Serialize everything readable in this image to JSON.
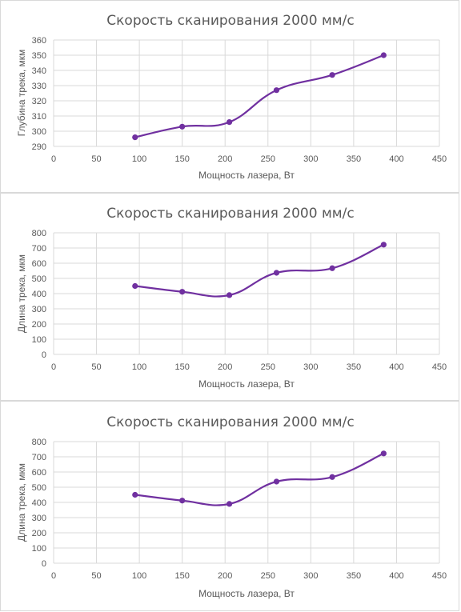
{
  "chart_data": [
    {
      "type": "line",
      "title": "Скорость  сканирования 2000 мм/с",
      "xlabel": "Мощность лазера, Вт",
      "ylabel": "Глубина трека, мкм",
      "xlim": [
        0,
        450
      ],
      "ylim": [
        290,
        360
      ],
      "xticks": [
        "0",
        "50",
        "100",
        "150",
        "200",
        "250",
        "300",
        "350",
        "400",
        "450"
      ],
      "yticks": [
        "290",
        "300",
        "310",
        "320",
        "330",
        "340",
        "350",
        "360"
      ],
      "grid": true,
      "smooth": true,
      "color": "#7030a0",
      "series": [
        {
          "x": [
            95,
            150,
            205,
            260,
            325,
            385
          ],
          "y": [
            296,
            303,
            306,
            327,
            337,
            350
          ]
        }
      ]
    },
    {
      "type": "line",
      "title": "Скорость  сканирования 2000 мм/с",
      "xlabel": "Мощность лазера, Вт",
      "ylabel": "Длина трека, мкм",
      "xlim": [
        0,
        450
      ],
      "ylim": [
        0,
        800
      ],
      "xticks": [
        "0",
        "50",
        "100",
        "150",
        "200",
        "250",
        "300",
        "350",
        "400",
        "450"
      ],
      "yticks": [
        "0",
        "100",
        "200",
        "300",
        "400",
        "500",
        "600",
        "700",
        "800"
      ],
      "grid": true,
      "smooth": true,
      "color": "#7030a0",
      "series": [
        {
          "x": [
            95,
            150,
            205,
            260,
            325,
            385
          ],
          "y": [
            450,
            412,
            390,
            537,
            567,
            722
          ]
        }
      ]
    },
    {
      "type": "line",
      "title": "Скорость  сканирования 2000 мм/с",
      "xlabel": "Мощность лазера, Вт",
      "ylabel": "Длина трека, мкм",
      "xlim": [
        0,
        450
      ],
      "ylim": [
        0,
        800
      ],
      "xticks": [
        "0",
        "50",
        "100",
        "150",
        "200",
        "250",
        "300",
        "350",
        "400",
        "450"
      ],
      "yticks": [
        "0",
        "100",
        "200",
        "300",
        "400",
        "500",
        "600",
        "700",
        "800"
      ],
      "grid": true,
      "smooth": true,
      "color": "#7030a0",
      "series": [
        {
          "x": [
            95,
            150,
            205,
            260,
            325,
            385
          ],
          "y": [
            450,
            412,
            390,
            537,
            567,
            722
          ]
        }
      ]
    }
  ]
}
